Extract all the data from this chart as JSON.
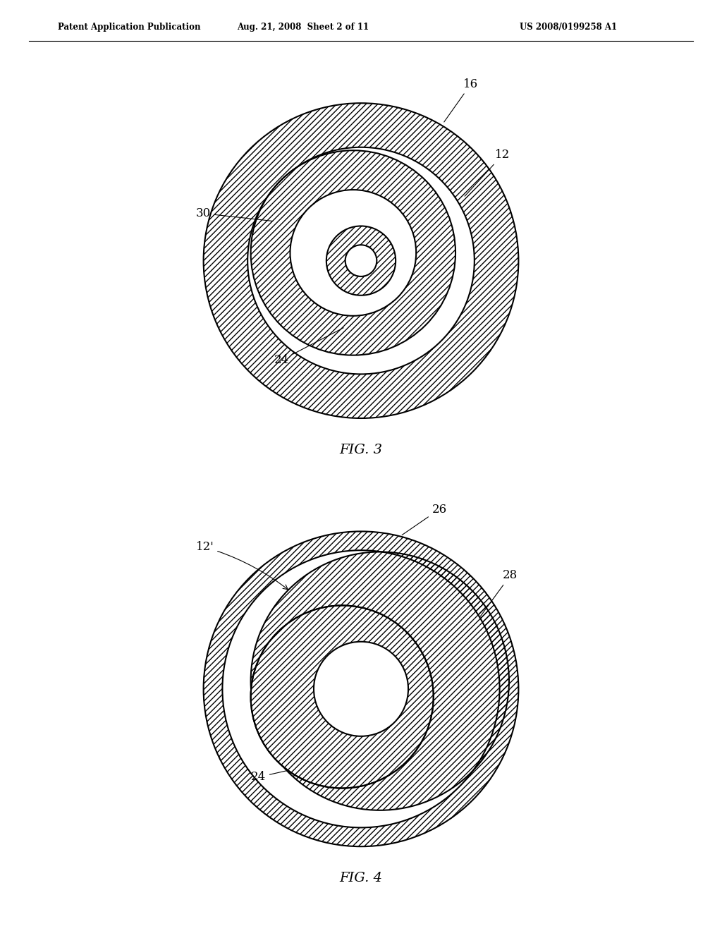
{
  "background_color": "#ffffff",
  "header_left": "Patent Application Publication",
  "header_mid": "Aug. 21, 2008  Sheet 2 of 11",
  "header_right": "US 2008/0199258 A1",
  "fig3_label": "FIG. 3",
  "fig4_label": "FIG. 4",
  "hatch_pattern": "////",
  "line_color": "#000000",
  "line_width": 1.5
}
